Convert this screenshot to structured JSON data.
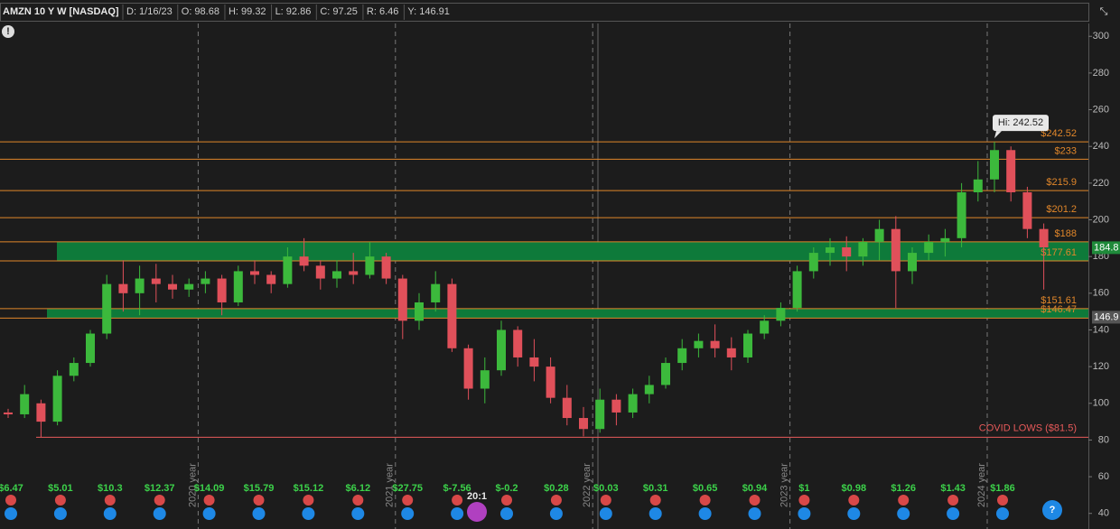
{
  "chart_data": {
    "type": "candlestick",
    "title": "AMZN 10 Y W [NASDAQ]",
    "header_stats": [
      "D: 1/16/23",
      "O: 98.68",
      "H: 99.32",
      "L: 92.86",
      "C: 97.25",
      "R: 6.46",
      "Y: 146.91"
    ],
    "open": [
      95,
      94,
      100,
      90,
      115,
      122,
      138,
      165,
      160,
      168,
      165,
      162,
      165,
      168,
      155,
      172,
      170,
      165,
      180,
      175,
      168,
      172,
      170,
      180,
      168,
      145,
      155,
      165,
      130,
      108,
      118,
      140,
      125,
      120,
      103,
      92,
      86,
      102,
      95,
      105,
      110,
      122,
      130,
      134,
      130,
      125,
      138,
      145,
      152,
      172,
      182,
      185,
      180,
      188,
      195,
      172,
      182,
      188,
      190,
      215,
      222,
      238,
      215,
      195
    ],
    "high": [
      97,
      110,
      102,
      118,
      125,
      140,
      170,
      178,
      175,
      176,
      170,
      168,
      172,
      170,
      175,
      178,
      172,
      185,
      190,
      178,
      178,
      182,
      188,
      182,
      170,
      160,
      172,
      168,
      132,
      125,
      145,
      142,
      135,
      125,
      110,
      98,
      108,
      105,
      108,
      115,
      125,
      135,
      138,
      143,
      136,
      140,
      148,
      155,
      175,
      185,
      190,
      191,
      190,
      200,
      202,
      185,
      192,
      195,
      220,
      232,
      242.52,
      240,
      218,
      198
    ],
    "low": [
      92,
      92,
      81.5,
      88,
      112,
      120,
      135,
      150,
      148,
      155,
      157,
      158,
      160,
      148,
      153,
      165,
      160,
      163,
      172,
      162,
      163,
      165,
      168,
      165,
      135,
      140,
      150,
      128,
      102,
      100,
      115,
      120,
      112,
      100,
      88,
      82,
      84,
      88,
      92,
      100,
      108,
      118,
      125,
      125,
      118,
      122,
      135,
      142,
      150,
      168,
      175,
      172,
      175,
      178,
      152,
      165,
      178,
      180,
      185,
      210,
      215,
      210,
      190,
      162
    ],
    "close": [
      94,
      105,
      90,
      115,
      122,
      138,
      165,
      160,
      168,
      165,
      162,
      165,
      168,
      155,
      172,
      170,
      165,
      180,
      175,
      168,
      172,
      170,
      180,
      168,
      145,
      155,
      165,
      130,
      108,
      118,
      140,
      125,
      120,
      103,
      92,
      86,
      102,
      95,
      105,
      110,
      122,
      130,
      134,
      130,
      125,
      138,
      145,
      152,
      172,
      182,
      185,
      180,
      188,
      195,
      172,
      182,
      188,
      190,
      215,
      222,
      238,
      215,
      195,
      185
    ],
    "ylim": [
      32,
      307
    ],
    "yticks": [
      40,
      60,
      80,
      100,
      120,
      140,
      160,
      180,
      200,
      220,
      240,
      260,
      280,
      300
    ],
    "up_color": "#3cb93c",
    "down_color": "#e0505a",
    "year_labels": [
      "2020 year",
      "2021 year",
      "2022 year",
      "2023 year",
      "2024 year"
    ],
    "levels": [
      {
        "value": 242.52,
        "label": "$242.52"
      },
      {
        "value": 233,
        "label": "$233"
      },
      {
        "value": 215.9,
        "label": "$215.9"
      },
      {
        "value": 201.2,
        "label": "$201.2"
      },
      {
        "value": 188,
        "label": "$188"
      },
      {
        "value": 177.61,
        "label": "$177.61"
      },
      {
        "value": 151.61,
        "label": "$151.61"
      },
      {
        "value": 146.47,
        "label": "$146.47"
      }
    ],
    "level_color": "#e0862a",
    "zone_color": "#0e7a3a",
    "covid_low": {
      "value": 81.5,
      "label": "COVID LOWS ($81.5)"
    },
    "high_marker": {
      "value": 242.52,
      "label": "Hi: 242.52"
    },
    "price_tags": [
      184.8,
      146.9
    ],
    "earnings": [
      "$6.47",
      "$5.01",
      "$10.3",
      "$12.37",
      "$14.09",
      "$15.79",
      "$15.12",
      "$6.12",
      "$27.75",
      "$-7.56",
      "$-0.2",
      "$0.28",
      "$0.03",
      "$0.31",
      "$0.65",
      "$0.94",
      "$1",
      "$0.98",
      "$1.26",
      "$1.43",
      "$1.86"
    ],
    "split": "20:1"
  }
}
